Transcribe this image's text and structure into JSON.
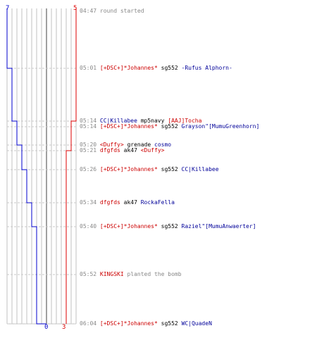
{
  "colors": {
    "team_blue": "#0000cc",
    "team_red": "#dd0000",
    "grid": "#c0c0c0",
    "dashed": "#c8c8c8",
    "time": "#888888",
    "event": "#888888"
  },
  "counts": {
    "blue_start": "7",
    "red_start": "5",
    "blue_end": "0",
    "red_end": "3"
  },
  "events": [
    {
      "time": "04:47",
      "parts": [
        {
          "text": "round started",
          "color": "grey"
        }
      ]
    },
    {
      "time": "05:01",
      "parts": [
        {
          "text": "[+DSC+]*Johannes*",
          "color": "red"
        },
        {
          "text": " sg552 ",
          "color": "black"
        },
        {
          "text": "-Rufus Alphorn-",
          "color": "blue"
        }
      ]
    },
    {
      "time": "05:14",
      "parts": [
        {
          "text": "CC|Killabee",
          "color": "blue"
        },
        {
          "text": " mp5navy ",
          "color": "black"
        },
        {
          "text": "[AAJ]Tocha",
          "color": "red"
        }
      ]
    },
    {
      "time": "05:14",
      "parts": [
        {
          "text": "[+DSC+]*Johannes*",
          "color": "red"
        },
        {
          "text": " sg552 ",
          "color": "black"
        },
        {
          "text": "Grayson\"[MumuGreenhorn]",
          "color": "blue"
        }
      ]
    },
    {
      "time": "05:20",
      "parts": [
        {
          "text": "<Duffy>",
          "color": "red"
        },
        {
          "text": " grenade ",
          "color": "black"
        },
        {
          "text": "cosmo",
          "color": "blue"
        }
      ]
    },
    {
      "time": "05:21",
      "parts": [
        {
          "text": "dfgfds",
          "color": "red"
        },
        {
          "text": " ak47 ",
          "color": "black"
        },
        {
          "text": "<Duffy>",
          "color": "red"
        }
      ]
    },
    {
      "time": "05:26",
      "parts": [
        {
          "text": "[+DSC+]*Johannes*",
          "color": "red"
        },
        {
          "text": " sg552 ",
          "color": "black"
        },
        {
          "text": "CC|Killabee",
          "color": "blue"
        }
      ]
    },
    {
      "time": "05:34",
      "parts": [
        {
          "text": "dfgfds",
          "color": "red"
        },
        {
          "text": " ak47 ",
          "color": "black"
        },
        {
          "text": "RockaFella",
          "color": "blue"
        }
      ]
    },
    {
      "time": "05:40",
      "parts": [
        {
          "text": "[+DSC+]*Johannes*",
          "color": "red"
        },
        {
          "text": " sg552 ",
          "color": "black"
        },
        {
          "text": "Raziel\"[MumuAnwaerter]",
          "color": "blue"
        }
      ]
    },
    {
      "time": "05:52",
      "parts": [
        {
          "text": "KINGSKI",
          "color": "red"
        },
        {
          "text": " planted the bomb",
          "color": "grey"
        }
      ]
    },
    {
      "time": "06:04",
      "parts": [
        {
          "text": "[+DSC+]*Johannes*",
          "color": "red"
        },
        {
          "text": " sg552 ",
          "color": "black"
        },
        {
          "text": "WC|QuadeN",
          "color": "blue"
        }
      ]
    }
  ]
}
